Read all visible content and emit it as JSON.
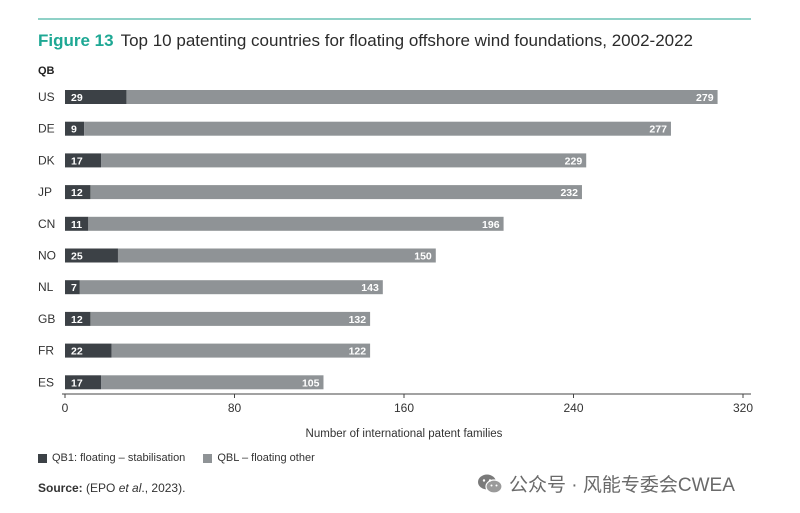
{
  "figure": {
    "label": "Figure 13",
    "title": "Top 10 patenting countries for floating offshore wind foundations, 2002-2022"
  },
  "source": {
    "label": "Source:",
    "text_pre": " (EPO ",
    "text_italic": "et al",
    "text_post": "., 2023)."
  },
  "watermark": {
    "text": "公众号 · 风能专委会CWEA",
    "icon": "wechat-icon"
  },
  "chart_data": {
    "type": "bar",
    "orientation": "horizontal",
    "stacked": true,
    "category_axis_label": "QB",
    "xlabel": "Number of international patent families",
    "xlim": [
      0,
      320
    ],
    "xticks": [
      0,
      80,
      160,
      240,
      320
    ],
    "categories": [
      "US",
      "DE",
      "DK",
      "JP",
      "CN",
      "NO",
      "NL",
      "GB",
      "FR",
      "ES"
    ],
    "series": [
      {
        "name": "QB1: floating – stabilisation",
        "color": "#3c4146",
        "values": [
          29,
          9,
          17,
          12,
          11,
          25,
          7,
          12,
          22,
          17
        ]
      },
      {
        "name": "QBL – floating other",
        "color": "#8f9396",
        "values": [
          279,
          277,
          229,
          232,
          196,
          150,
          143,
          132,
          122,
          105
        ]
      }
    ],
    "legend_position": "bottom-left",
    "grid": false
  }
}
